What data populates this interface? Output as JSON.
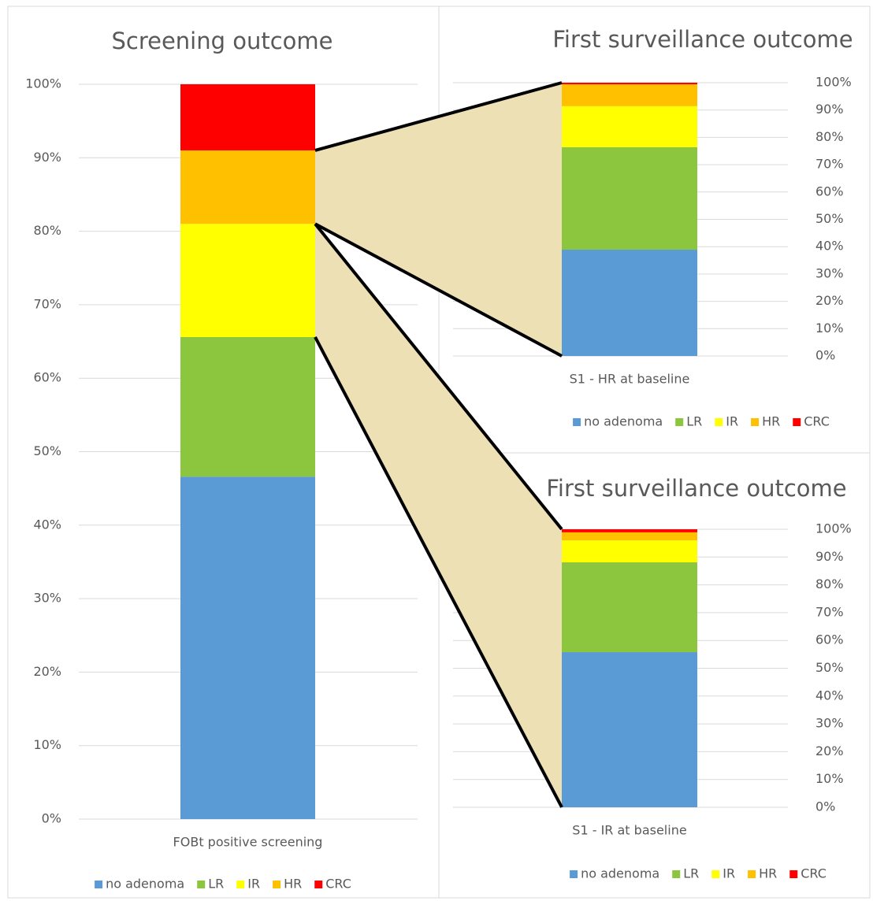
{
  "chart_data": [
    {
      "type": "bar",
      "stacked": true,
      "title": "Screening outcome",
      "y_axis_side": "left",
      "categories": [
        "FOBt positive screening"
      ],
      "series": [
        {
          "name": "no adenoma",
          "color": "#5b9bd5",
          "values": [
            46.6
          ]
        },
        {
          "name": "LR",
          "color": "#8cc63f",
          "values": [
            19
          ]
        },
        {
          "name": "IR",
          "color": "#ffff00",
          "values": [
            15.4
          ]
        },
        {
          "name": "HR",
          "color": "#ffc000",
          "values": [
            10
          ]
        },
        {
          "name": "CRC",
          "color": "#ff0000",
          "values": [
            9
          ]
        }
      ],
      "ylim": [
        0,
        100
      ],
      "yticks": [
        {
          "value": 0,
          "label": "0%"
        },
        {
          "value": 10,
          "label": "10%"
        },
        {
          "value": 20,
          "label": "20%"
        },
        {
          "value": 30,
          "label": "30%"
        },
        {
          "value": 40,
          "label": "40%"
        },
        {
          "value": 50,
          "label": "50%"
        },
        {
          "value": 60,
          "label": "60%"
        },
        {
          "value": 70,
          "label": "70%"
        },
        {
          "value": 80,
          "label": "80%"
        },
        {
          "value": 90,
          "label": "90%"
        },
        {
          "value": 100,
          "label": "100%"
        }
      ],
      "grid": true
    },
    {
      "type": "bar",
      "stacked": true,
      "title": "First surveillance outcome",
      "y_axis_side": "right",
      "categories": [
        "S1 - HR at baseline"
      ],
      "series": [
        {
          "name": "no adenoma",
          "color": "#5b9bd5",
          "values": [
            38.9
          ]
        },
        {
          "name": "LR",
          "color": "#8cc63f",
          "values": [
            37.5
          ]
        },
        {
          "name": "IR",
          "color": "#ffff00",
          "values": [
            15
          ]
        },
        {
          "name": "HR",
          "color": "#ffc000",
          "values": [
            8
          ]
        },
        {
          "name": "CRC",
          "color": "#ff0000",
          "values": [
            0.6
          ]
        }
      ],
      "ylim": [
        0,
        100
      ],
      "yticks": [
        {
          "value": 0,
          "label": "0%"
        },
        {
          "value": 10,
          "label": "10%"
        },
        {
          "value": 20,
          "label": "20%"
        },
        {
          "value": 30,
          "label": "30%"
        },
        {
          "value": 40,
          "label": "40%"
        },
        {
          "value": 50,
          "label": "50%"
        },
        {
          "value": 60,
          "label": "60%"
        },
        {
          "value": 70,
          "label": "70%"
        },
        {
          "value": 80,
          "label": "80%"
        },
        {
          "value": 90,
          "label": "90%"
        },
        {
          "value": 100,
          "label": "100%"
        }
      ],
      "grid": true
    },
    {
      "type": "bar",
      "stacked": true,
      "title": "First surveillance outcome",
      "y_axis_side": "right",
      "categories": [
        "S1 - IR at baseline"
      ],
      "series": [
        {
          "name": "no adenoma",
          "color": "#5b9bd5",
          "values": [
            55.8
          ]
        },
        {
          "name": "LR",
          "color": "#8cc63f",
          "values": [
            32.3
          ]
        },
        {
          "name": "IR",
          "color": "#ffff00",
          "values": [
            7.9
          ]
        },
        {
          "name": "HR",
          "color": "#ffc000",
          "values": [
            2.9
          ]
        },
        {
          "name": "CRC",
          "color": "#ff0000",
          "values": [
            1.1
          ]
        }
      ],
      "ylim": [
        0,
        100
      ],
      "yticks": [
        {
          "value": 0,
          "label": "0%"
        },
        {
          "value": 10,
          "label": "10%"
        },
        {
          "value": 20,
          "label": "20%"
        },
        {
          "value": 30,
          "label": "30%"
        },
        {
          "value": 40,
          "label": "40%"
        },
        {
          "value": 50,
          "label": "50%"
        },
        {
          "value": 60,
          "label": "60%"
        },
        {
          "value": 70,
          "label": "70%"
        },
        {
          "value": 80,
          "label": "80%"
        },
        {
          "value": 90,
          "label": "90%"
        },
        {
          "value": 100,
          "label": "100%"
        }
      ],
      "grid": true
    }
  ]
}
